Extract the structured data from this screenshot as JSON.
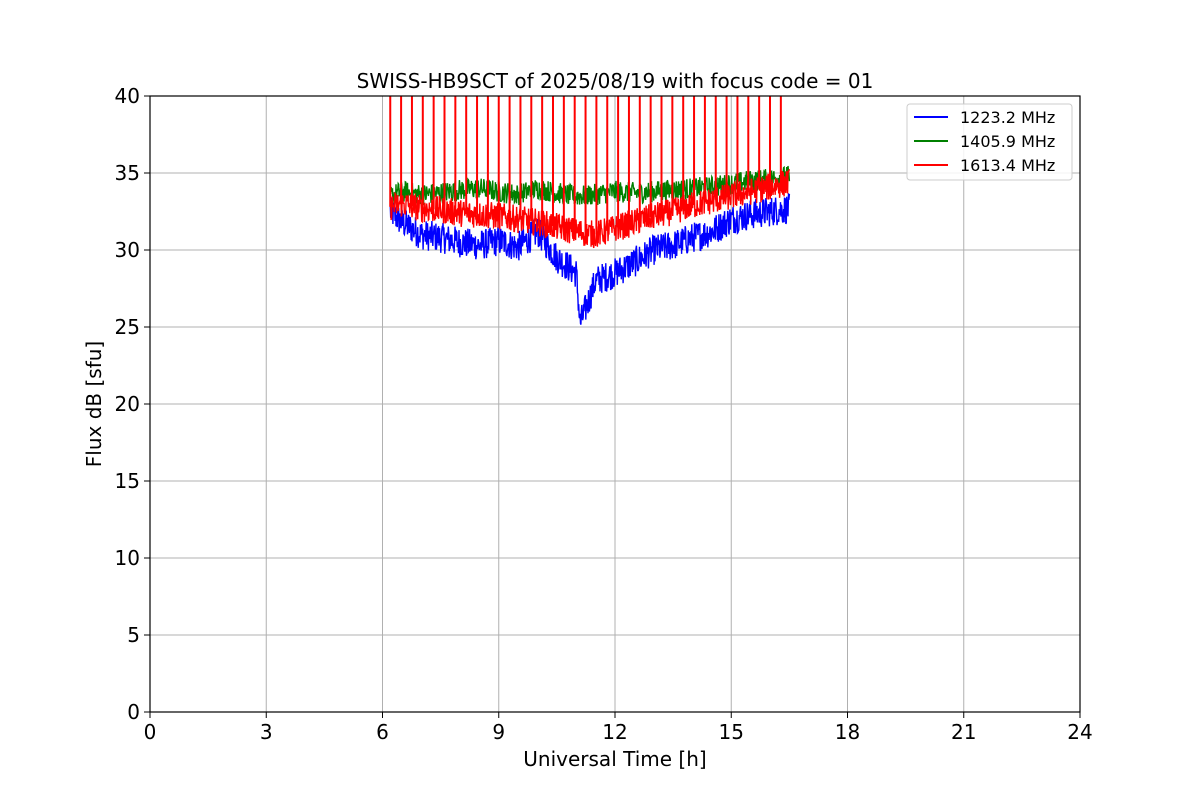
{
  "chart_data": {
    "type": "line",
    "title": "SWISS-HB9SCT of 2025/08/19 with focus code = 01",
    "xlabel": "Universal Time [h]",
    "ylabel": "Flux dB [sfu]",
    "xlim": [
      0,
      24
    ],
    "ylim": [
      0,
      40
    ],
    "xticks": [
      0,
      3,
      6,
      9,
      12,
      15,
      18,
      21,
      24
    ],
    "yticks": [
      0,
      5,
      10,
      15,
      20,
      25,
      30,
      35,
      40
    ],
    "grid": true,
    "legend_position": "top-right",
    "series": [
      {
        "name": "1223.2 MHz",
        "color": "#0000ff",
        "x": [
          6.2,
          6.5,
          7.0,
          7.5,
          8.0,
          8.5,
          9.0,
          9.5,
          10.0,
          10.5,
          11.0,
          11.1,
          11.5,
          12.0,
          12.5,
          13.0,
          13.5,
          14.0,
          14.5,
          15.0,
          15.5,
          16.0,
          16.5
        ],
        "y": [
          32.5,
          31.8,
          31.0,
          30.8,
          30.5,
          30.3,
          30.6,
          30.2,
          31.2,
          29.5,
          28.5,
          25.2,
          28.0,
          28.5,
          29.2,
          30.0,
          30.3,
          30.8,
          31.2,
          32.0,
          32.3,
          32.5,
          32.7
        ]
      },
      {
        "name": "1405.9 MHz",
        "color": "#008000",
        "x": [
          6.2,
          6.5,
          7.0,
          7.5,
          8.0,
          8.5,
          9.0,
          9.5,
          10.0,
          10.5,
          11.0,
          11.5,
          12.0,
          12.5,
          13.0,
          13.5,
          14.0,
          14.5,
          15.0,
          15.5,
          16.0,
          16.5
        ],
        "y": [
          33.5,
          33.8,
          33.6,
          33.7,
          33.9,
          34.0,
          33.8,
          33.6,
          34.0,
          33.7,
          33.5,
          33.6,
          33.8,
          33.7,
          33.8,
          33.9,
          34.0,
          34.1,
          34.3,
          34.5,
          34.6,
          34.8
        ]
      },
      {
        "name": "1613.4 MHz",
        "color": "#ff0000",
        "x": [
          6.2,
          6.5,
          7.0,
          7.5,
          8.0,
          8.5,
          9.0,
          9.5,
          10.0,
          10.5,
          11.0,
          11.5,
          12.0,
          12.5,
          13.0,
          13.5,
          14.0,
          14.5,
          15.0,
          15.5,
          16.0,
          16.5
        ],
        "y": [
          32.8,
          33.0,
          32.7,
          32.6,
          32.4,
          32.3,
          32.2,
          32.0,
          31.8,
          31.5,
          31.2,
          31.0,
          31.4,
          31.8,
          32.2,
          32.5,
          32.9,
          33.2,
          33.5,
          33.8,
          34.1,
          34.4
        ],
        "spikes_x": [
          6.2,
          6.48,
          6.76,
          7.04,
          7.32,
          7.6,
          7.88,
          8.16,
          8.44,
          8.72,
          9.0,
          9.28,
          9.56,
          9.84,
          10.12,
          10.4,
          10.68,
          10.96,
          11.24,
          11.52,
          11.8,
          12.08,
          12.36,
          12.64,
          12.92,
          13.2,
          13.48,
          13.76,
          14.04,
          14.32,
          14.6,
          14.88,
          15.16,
          15.44,
          15.72,
          16.0,
          16.28
        ],
        "spikes_top": 40
      }
    ]
  }
}
